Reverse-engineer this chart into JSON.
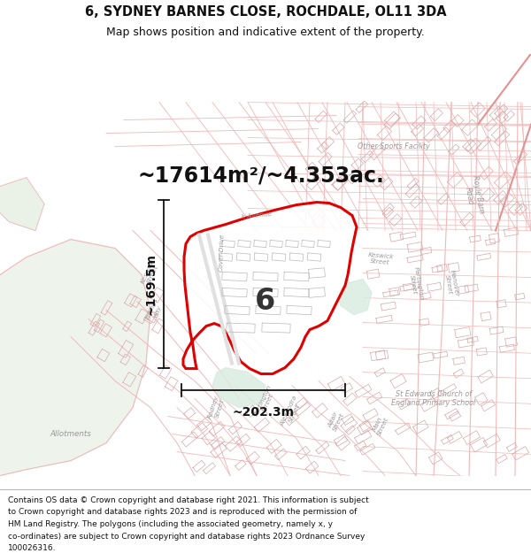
{
  "title_line1": "6, SYDNEY BARNES CLOSE, ROCHDALE, OL11 3DA",
  "title_line2": "Map shows position and indicative extent of the property.",
  "area_label": "~17614m²/~4.353ac.",
  "plot_number": "6",
  "dim_width": "~202.3m",
  "dim_height": "~169.5m",
  "footer_lines": [
    "Contains OS data © Crown copyright and database right 2021. This information is subject",
    "to Crown copyright and database rights 2023 and is reproduced with the permission of",
    "HM Land Registry. The polygons (including the associated geometry, namely x, y",
    "co-ordinates) are subject to Crown copyright and database rights 2023 Ordnance Survey",
    "100026316."
  ],
  "bg_color": "#f8f5f2",
  "map_bg": "#f7f4f1",
  "boundary_color": "#e00000",
  "boundary_lw": 2.2,
  "title_fontsize": 10.5,
  "subtitle_fontsize": 9,
  "area_fontsize": 17,
  "plot_num_fontsize": 24,
  "dim_fontsize": 10,
  "footer_fontsize": 6.5,
  "road_color": "#f0b8b8",
  "road_color2": "#e89090",
  "bld_color": "#d8b8b8",
  "gray_road": "#cccccc",
  "gray_bld": "#cccccc",
  "map_text_color": "#aaaaaa",
  "green1": "#d8ebe0",
  "green2": "#cce5d5"
}
